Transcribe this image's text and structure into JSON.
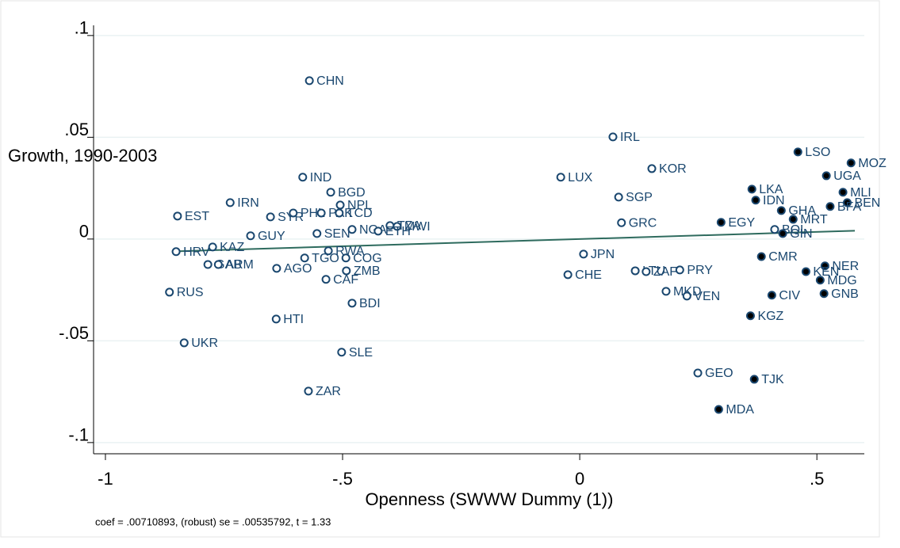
{
  "chart_data": {
    "type": "scatter",
    "ylabel": "Growth, 1990-2003",
    "xlabel": "Openness (SWWW Dummy (1))",
    "note": "coef = .00710893, (robust) se = .00535792, t = 1.33",
    "xlim": [
      -1.025,
      0.6
    ],
    "ylim": [
      -0.1055,
      0.105
    ],
    "xticks": [
      -1,
      {
        "value": -0.5,
        "label": "-.5"
      },
      0,
      {
        "value": 0.5,
        "label": ".5"
      }
    ],
    "yticks": [
      {
        "value": 0.1,
        "label": ".1"
      },
      {
        "value": 0.05,
        "label": ".05"
      },
      0,
      {
        "value": -0.05,
        "label": "-.05"
      },
      {
        "value": -0.1,
        "label": "-.1"
      }
    ],
    "grid": true,
    "color": "#1a476f",
    "fit_color": "#2e6b5e",
    "fit_line": {
      "x": [
        -0.86,
        0.58
      ],
      "y": [
        -0.0061,
        0.0041
      ]
    },
    "points": [
      {
        "label": "CHN",
        "x": -0.57,
        "y": 0.0778,
        "filled": false
      },
      {
        "label": "IND",
        "x": -0.584,
        "y": 0.0304,
        "filled": false
      },
      {
        "label": "BGD",
        "x": -0.525,
        "y": 0.023,
        "filled": false
      },
      {
        "label": "NPL",
        "x": -0.505,
        "y": 0.0167,
        "filled": false
      },
      {
        "label": "IRN",
        "x": -0.737,
        "y": 0.0179,
        "filled": false
      },
      {
        "label": "EST",
        "x": -0.848,
        "y": 0.0113,
        "filled": false
      },
      {
        "label": "SYR",
        "x": -0.652,
        "y": 0.0109,
        "filled": false
      },
      {
        "label": "PHL",
        "x": -0.604,
        "y": 0.0128,
        "filled": false
      },
      {
        "label": "PAK",
        "x": -0.545,
        "y": 0.0128,
        "filled": false
      },
      {
        "label": "TCD",
        "x": -0.507,
        "y": 0.0128,
        "filled": false
      },
      {
        "label": "TZA",
        "x": -0.4,
        "y": 0.0066,
        "filled": false
      },
      {
        "label": "MWI",
        "x": -0.385,
        "y": 0.0062,
        "filled": false
      },
      {
        "label": "NGA",
        "x": -0.48,
        "y": 0.0047,
        "filled": false
      },
      {
        "label": "ETH",
        "x": -0.425,
        "y": 0.0039,
        "filled": false
      },
      {
        "label": "GUY",
        "x": -0.694,
        "y": 0.0016,
        "filled": false
      },
      {
        "label": "SEN",
        "x": -0.554,
        "y": 0.0027,
        "filled": false
      },
      {
        "label": "KAZ",
        "x": -0.774,
        "y": -0.0039,
        "filled": false
      },
      {
        "label": "HRV",
        "x": -0.851,
        "y": -0.0062,
        "filled": false
      },
      {
        "label": "GAB",
        "x": -0.784,
        "y": -0.0125,
        "filled": false
      },
      {
        "label": "ARM",
        "x": -0.762,
        "y": -0.0125,
        "filled": false
      },
      {
        "label": "RWA",
        "x": -0.53,
        "y": -0.0058,
        "filled": false
      },
      {
        "label": "TGO",
        "x": -0.58,
        "y": -0.0093,
        "filled": false
      },
      {
        "label": "COG",
        "x": -0.493,
        "y": -0.0093,
        "filled": false
      },
      {
        "label": "AGO",
        "x": -0.639,
        "y": -0.0144,
        "filled": false
      },
      {
        "label": "ZMB",
        "x": -0.492,
        "y": -0.0156,
        "filled": false
      },
      {
        "label": "CAF",
        "x": -0.535,
        "y": -0.0198,
        "filled": false
      },
      {
        "label": "RUS",
        "x": -0.865,
        "y": -0.0261,
        "filled": false
      },
      {
        "label": "BDI",
        "x": -0.48,
        "y": -0.0315,
        "filled": false
      },
      {
        "label": "HTI",
        "x": -0.64,
        "y": -0.0393,
        "filled": false
      },
      {
        "label": "UKR",
        "x": -0.834,
        "y": -0.051,
        "filled": false
      },
      {
        "label": "SLE",
        "x": -0.502,
        "y": -0.0556,
        "filled": false
      },
      {
        "label": "ZAR",
        "x": -0.572,
        "y": -0.0747,
        "filled": false
      },
      {
        "label": "IRL",
        "x": 0.07,
        "y": 0.0502,
        "filled": false
      },
      {
        "label": "LUX",
        "x": -0.04,
        "y": 0.0304,
        "filled": false
      },
      {
        "label": "KOR",
        "x": 0.152,
        "y": 0.0346,
        "filled": false
      },
      {
        "label": "SGP",
        "x": 0.082,
        "y": 0.0206,
        "filled": false
      },
      {
        "label": "GRC",
        "x": 0.088,
        "y": 0.008,
        "filled": false
      },
      {
        "label": "CHE",
        "x": -0.025,
        "y": -0.0175,
        "filled": false
      },
      {
        "label": "JPN",
        "x": 0.008,
        "y": -0.0074,
        "filled": false
      },
      {
        "label": "LTU",
        "x": 0.117,
        "y": -0.0156,
        "filled": false
      },
      {
        "label": "ZAF",
        "x": 0.14,
        "y": -0.016,
        "filled": false
      },
      {
        "label": "PRY",
        "x": 0.211,
        "y": -0.0152,
        "filled": false
      },
      {
        "label": "MKD",
        "x": 0.182,
        "y": -0.0257,
        "filled": false
      },
      {
        "label": "VEN",
        "x": 0.226,
        "y": -0.028,
        "filled": false
      },
      {
        "label": "GEO",
        "x": 0.249,
        "y": -0.0658,
        "filled": false
      },
      {
        "label": "BOL",
        "x": 0.411,
        "y": 0.0047,
        "filled": false
      },
      {
        "label": "LSO",
        "x": 0.46,
        "y": 0.0428,
        "filled": true
      },
      {
        "label": "MOZ",
        "x": 0.572,
        "y": 0.0374,
        "filled": true
      },
      {
        "label": "UGA",
        "x": 0.52,
        "y": 0.0311,
        "filled": true
      },
      {
        "label": "MLI",
        "x": 0.555,
        "y": 0.023,
        "filled": true
      },
      {
        "label": "BEN",
        "x": 0.564,
        "y": 0.0179,
        "filled": true
      },
      {
        "label": "LKA",
        "x": 0.363,
        "y": 0.0245,
        "filled": true
      },
      {
        "label": "IDN",
        "x": 0.371,
        "y": 0.0191,
        "filled": true
      },
      {
        "label": "GHA",
        "x": 0.425,
        "y": 0.014,
        "filled": true
      },
      {
        "label": "MRT",
        "x": 0.45,
        "y": 0.0097,
        "filled": true
      },
      {
        "label": "BFA",
        "x": 0.528,
        "y": 0.016,
        "filled": true
      },
      {
        "label": "EGY",
        "x": 0.298,
        "y": 0.0082,
        "filled": true
      },
      {
        "label": "GIN",
        "x": 0.428,
        "y": 0.0027,
        "filled": true
      },
      {
        "label": "CMR",
        "x": 0.383,
        "y": -0.0086,
        "filled": true
      },
      {
        "label": "NER",
        "x": 0.517,
        "y": -0.0132,
        "filled": true
      },
      {
        "label": "KEN",
        "x": 0.477,
        "y": -0.016,
        "filled": true
      },
      {
        "label": "MDG",
        "x": 0.507,
        "y": -0.0202,
        "filled": true
      },
      {
        "label": "GNB",
        "x": 0.515,
        "y": -0.0268,
        "filled": true
      },
      {
        "label": "CIV",
        "x": 0.405,
        "y": -0.0276,
        "filled": true
      },
      {
        "label": "KGZ",
        "x": 0.36,
        "y": -0.0377,
        "filled": true
      },
      {
        "label": "TJK",
        "x": 0.368,
        "y": -0.0689,
        "filled": true
      },
      {
        "label": "MDA",
        "x": 0.293,
        "y": -0.0837,
        "filled": true
      }
    ]
  }
}
